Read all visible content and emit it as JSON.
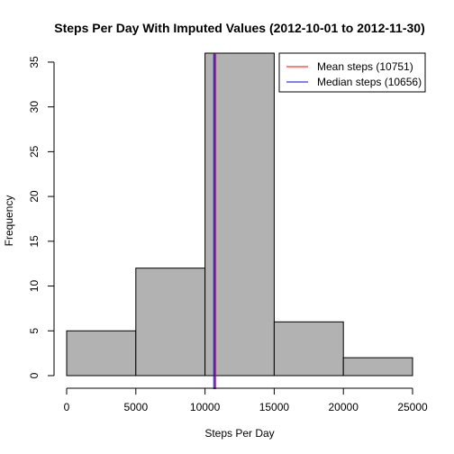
{
  "chart_data": {
    "type": "bar",
    "title": "Steps Per Day With Imputed Values (2012-10-01 to 2012-11-30)",
    "xlabel": "Steps Per Day",
    "ylabel": "Frequency",
    "bins": [
      {
        "from": 0,
        "to": 5000,
        "count": 5
      },
      {
        "from": 5000,
        "to": 10000,
        "count": 12
      },
      {
        "from": 10000,
        "to": 15000,
        "count": 36
      },
      {
        "from": 15000,
        "to": 20000,
        "count": 6
      },
      {
        "from": 20000,
        "to": 25000,
        "count": 2
      }
    ],
    "xlim": [
      0,
      25000
    ],
    "ylim": [
      0,
      36
    ],
    "x_ticks": [
      0,
      5000,
      10000,
      15000,
      20000,
      25000
    ],
    "y_ticks": [
      0,
      5,
      10,
      15,
      20,
      25,
      30,
      35
    ],
    "bar_color": "#b2b2b2",
    "lines": [
      {
        "name": "Mean steps (10751)",
        "value": 10751,
        "color": "#ff0000"
      },
      {
        "name": "Median steps (10656)",
        "value": 10656,
        "color": "#0000ff"
      }
    ],
    "legend_position": "top-right",
    "grid": false
  }
}
